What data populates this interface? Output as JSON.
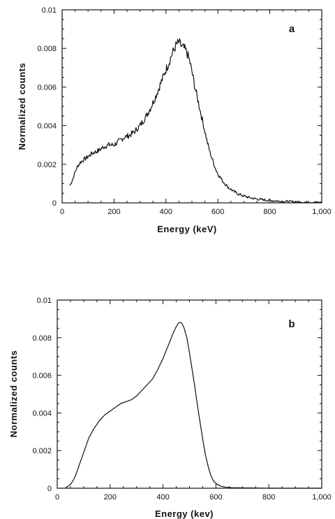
{
  "chart_data": [
    {
      "type": "line",
      "panel_label": "a",
      "xlabel": "Energy  (keV)",
      "ylabel": "Normalized  counts",
      "xlim": [
        0,
        1000
      ],
      "ylim": [
        0,
        0.01
      ],
      "x_ticks": [
        "0",
        "200",
        "400",
        "600",
        "800",
        "1,000"
      ],
      "y_ticks": [
        "0",
        "0.002",
        "0.004",
        "0.006",
        "0.008",
        "0.01"
      ],
      "grid": false,
      "noisy": true,
      "series": [
        {
          "x": [
            30,
            40,
            50,
            60,
            70,
            80,
            100,
            120,
            140,
            160,
            180,
            200,
            220,
            240,
            260,
            280,
            300,
            320,
            340,
            360,
            380,
            400,
            410,
            420,
            430,
            440,
            450,
            460,
            470,
            480,
            490,
            500,
            510,
            520,
            530,
            540,
            550,
            560,
            570,
            580,
            590,
            600,
            620,
            640,
            660,
            680,
            700,
            720,
            740,
            760,
            780,
            800,
            850,
            900,
            950,
            1000
          ],
          "y": [
            0.0009,
            0.0012,
            0.0016,
            0.0019,
            0.0021,
            0.0022,
            0.0024,
            0.0026,
            0.0027,
            0.0029,
            0.003,
            0.003,
            0.0032,
            0.0034,
            0.0035,
            0.0037,
            0.004,
            0.0044,
            0.0049,
            0.0055,
            0.0062,
            0.0069,
            0.0072,
            0.0076,
            0.0079,
            0.0082,
            0.0083,
            0.0081,
            0.008,
            0.0078,
            0.0074,
            0.0068,
            0.0061,
            0.0055,
            0.0049,
            0.0043,
            0.0037,
            0.0031,
            0.0026,
            0.0022,
            0.0018,
            0.0015,
            0.0011,
            0.0008,
            0.0006,
            0.00045,
            0.00035,
            0.00028,
            0.00022,
            0.00018,
            0.00015,
            0.00012,
            8e-05,
            5e-05,
            3e-05,
            2e-05
          ]
        }
      ]
    },
    {
      "type": "line",
      "panel_label": "b",
      "xlabel": "Energy  (kev)",
      "ylabel": "Normalized  counts",
      "xlim": [
        0,
        1000
      ],
      "ylim": [
        0,
        0.01
      ],
      "x_ticks": [
        "0",
        "200",
        "400",
        "600",
        "800",
        "1,000"
      ],
      "y_ticks": [
        "0",
        "0.002",
        "0.004",
        "0.006",
        "0.008",
        "0.01"
      ],
      "grid": false,
      "noisy": false,
      "series": [
        {
          "x": [
            30,
            40,
            50,
            60,
            70,
            80,
            90,
            100,
            110,
            120,
            140,
            160,
            180,
            200,
            220,
            240,
            260,
            280,
            300,
            320,
            340,
            360,
            380,
            400,
            420,
            440,
            450,
            460,
            470,
            480,
            490,
            500,
            510,
            520,
            530,
            540,
            550,
            560,
            570,
            580,
            590,
            600,
            620,
            640,
            660,
            700,
            750,
            800,
            850,
            900,
            1000
          ],
          "y": [
            0.0,
            0.0001,
            0.0002,
            0.0004,
            0.0007,
            0.0011,
            0.0015,
            0.0019,
            0.0023,
            0.0027,
            0.0032,
            0.0036,
            0.0039,
            0.0041,
            0.0043,
            0.0045,
            0.0046,
            0.0047,
            0.0049,
            0.0052,
            0.0055,
            0.0058,
            0.0063,
            0.0069,
            0.0076,
            0.0083,
            0.0086,
            0.0088,
            0.0088,
            0.0085,
            0.008,
            0.0072,
            0.0063,
            0.0054,
            0.0044,
            0.0035,
            0.0026,
            0.0018,
            0.0012,
            0.0007,
            0.0004,
            0.00025,
            0.0001,
            5e-05,
            3e-05,
            2e-05,
            1e-05,
            0.0,
            0.0,
            0.0,
            0.0
          ]
        }
      ]
    }
  ]
}
